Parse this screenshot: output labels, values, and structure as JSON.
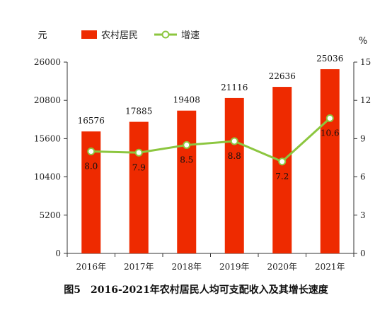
{
  "chart_data": {
    "type": "bar",
    "title": "图5　2016-2021年农村居民人均可支配收入及其增长速度",
    "left_unit": "元",
    "right_unit": "%",
    "categories": [
      "2016年",
      "2017年",
      "2018年",
      "2019年",
      "2020年",
      "2021年"
    ],
    "series": [
      {
        "name": "农村居民",
        "type": "bar",
        "axis": "left",
        "color": "#ee2a00",
        "values": [
          16576,
          17885,
          19408,
          21116,
          22636,
          25036
        ]
      },
      {
        "name": "增速",
        "type": "line",
        "axis": "right",
        "color": "#8cc63f",
        "values": [
          8.0,
          7.9,
          8.5,
          8.8,
          7.2,
          10.6
        ]
      }
    ],
    "rate_labels": [
      "8.0",
      "7.9",
      "8.5",
      "8.8",
      "7.2",
      "10.6"
    ],
    "left_ticks": [
      "0",
      "5200",
      "10400",
      "15600",
      "20800",
      "26000"
    ],
    "right_ticks": [
      "0",
      "3",
      "6",
      "9",
      "12",
      "15"
    ],
    "ylim_left": [
      0,
      26000
    ],
    "ylim_right": [
      0,
      15
    ],
    "grid": false,
    "legend_position": "top"
  }
}
